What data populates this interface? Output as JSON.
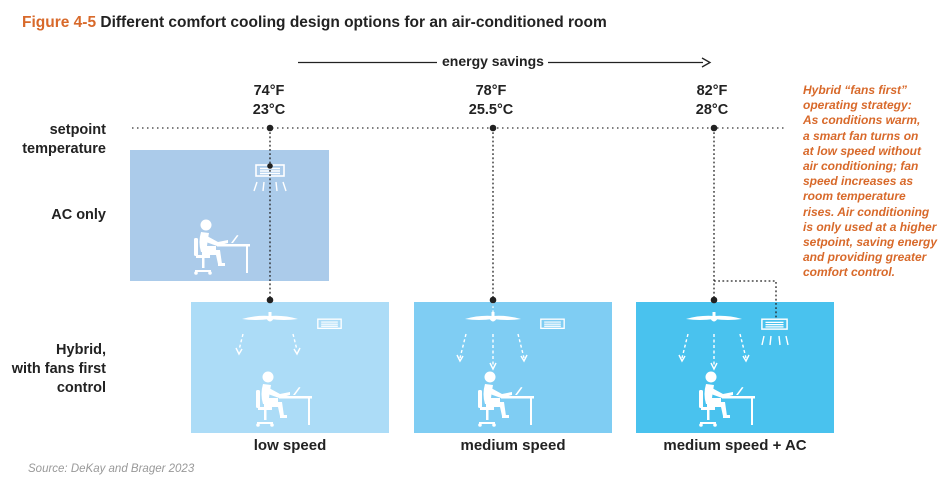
{
  "title": {
    "figure_number": "Figure 4-5",
    "text": "Different comfort cooling design options for an air-conditioned room"
  },
  "energy_savings_label": "energy savings",
  "setpoints": [
    {
      "fahrenheit": "74°F",
      "celsius": "23°C"
    },
    {
      "fahrenheit": "78°F",
      "celsius": "25.5°C"
    },
    {
      "fahrenheit": "82°F",
      "celsius": "28°C"
    }
  ],
  "row_labels": {
    "setpoint": [
      "setpoint",
      "temperature"
    ],
    "ac_only": "AC only",
    "hybrid": [
      "Hybrid,",
      "with fans first",
      "control"
    ]
  },
  "panel_captions": [
    "low speed",
    "medium speed",
    "medium speed + AC"
  ],
  "note_lines": [
    "Hybrid “fans first”",
    "operating strategy:",
    "As conditions warm,",
    "a smart fan turns on",
    "at low speed without",
    "air conditioning; fan",
    "speed increases as",
    "room temperature",
    "rises. Air conditioning",
    "is only used at a higher",
    "setpoint, saving energy",
    "and providing greater",
    "comfort control."
  ],
  "source": "Source: DeKay and Brager 2023",
  "colors": {
    "accent_orange": "#d8692a",
    "ac_only_panel": "#abcbea",
    "low_speed_panel": "#acdcf7",
    "medium_speed_panel": "#7fcdf3",
    "medium_speed_ac_panel": "#49c2ee"
  }
}
